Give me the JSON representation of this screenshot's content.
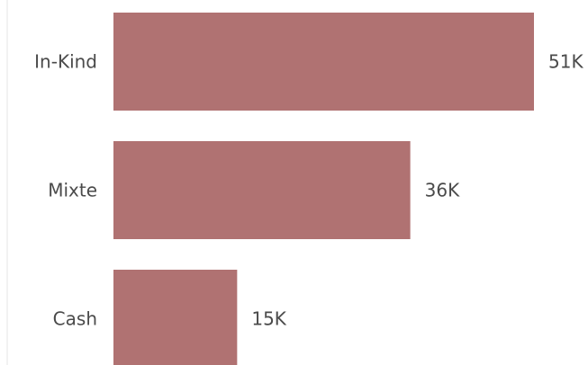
{
  "chart_data": {
    "type": "bar",
    "orientation": "horizontal",
    "categories": [
      "In-Kind",
      "Mixte",
      "Cash"
    ],
    "values": [
      51000,
      36000,
      15000
    ],
    "value_labels": [
      "51K",
      "36K",
      "15K"
    ],
    "xlim": [
      0,
      51000
    ],
    "grid": false,
    "legend": "none",
    "bar_color": "#b07272",
    "text_color": "#4a4a4a",
    "axis_color": "#e6e6e6"
  }
}
